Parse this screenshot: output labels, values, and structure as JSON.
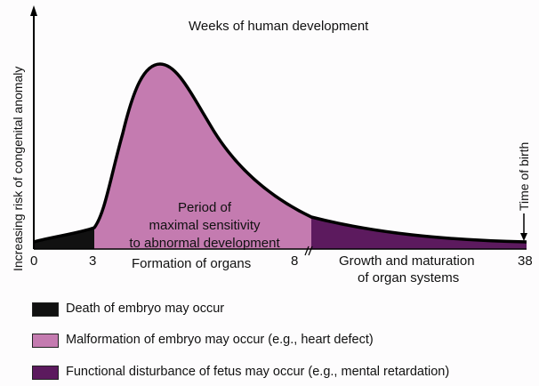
{
  "title": "Weeks of human development",
  "y_axis_label": "Increasing risk of congenital anomaly",
  "x_ticks": [
    "0",
    "3",
    "8",
    "38"
  ],
  "phase_labels": {
    "formation": "Formation of organs",
    "growth_line1": "Growth and maturation",
    "growth_line2": "of organ systems"
  },
  "annotation": {
    "line1": "Period of",
    "line2": "maximal sensitivity",
    "line3": "to abnormal development"
  },
  "birth_marker": "Time of birth",
  "legend": [
    {
      "label": "Death of embryo may occur",
      "color": "#111111"
    },
    {
      "label": "Malformation of embryo may occur (e.g., heart defect)",
      "color": "#c47bb0"
    },
    {
      "label": "Functional disturbance of fetus may occur (e.g., mental retardation)",
      "color": "#5c1a5e"
    }
  ]
}
